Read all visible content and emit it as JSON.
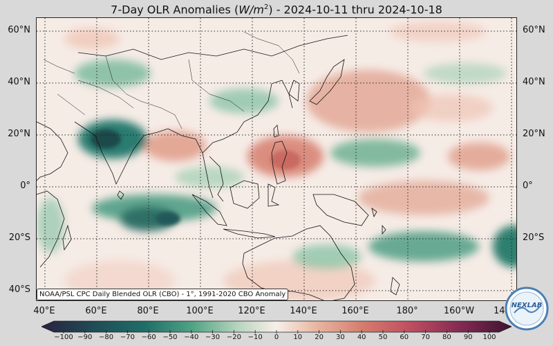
{
  "title": {
    "prefix": "7-Day OLR Anomalies (",
    "unit_base": "W/m",
    "unit_exp": "2",
    "suffix": ") - 2024-10-11 thru 2024-10-18"
  },
  "map": {
    "lat_labels": [
      "60°N",
      "40°N",
      "20°N",
      "0°",
      "20°S",
      "40°S"
    ],
    "lon_labels": [
      "40°E",
      "60°E",
      "80°E",
      "100°E",
      "120°E",
      "140°E",
      "160°E",
      "180°",
      "160°W",
      "14"
    ],
    "credit": "NOAA/PSL CPC Daily Blended OLR (CBO) - 1°, 1991-2020 CBO Anomaly"
  },
  "colorbar": {
    "ticks": [
      "−100",
      "−90",
      "−80",
      "−70",
      "−60",
      "−50",
      "−40",
      "−30",
      "−20",
      "−10",
      "0",
      "10",
      "20",
      "30",
      "40",
      "50",
      "60",
      "70",
      "80",
      "90",
      "100"
    ],
    "colors": {
      "neg_strong": "#2a2240",
      "neg_teal": "#1f6e68",
      "neg_mid": "#4fa384",
      "neg_light": "#b9d6be",
      "neutral": "#f7efe9",
      "pos_light": "#eab9a4",
      "pos_mid": "#d57e6e",
      "pos_strong": "#a23d5d",
      "pos_max": "#3e1230"
    }
  },
  "logo": {
    "text": "NEXLAB"
  }
}
